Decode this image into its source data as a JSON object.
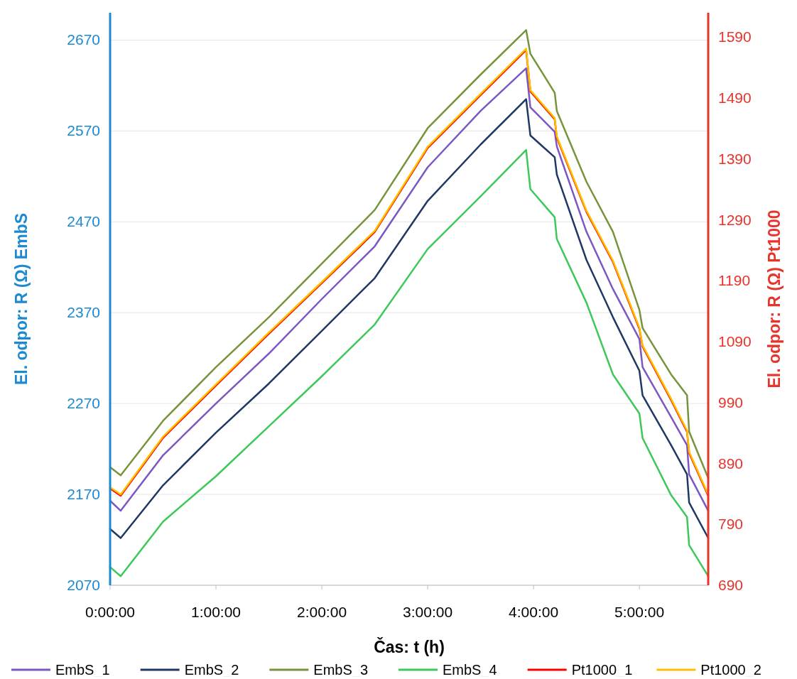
{
  "chart_data": {
    "type": "line",
    "xlabel": "Čas: t (h)",
    "ylabel": "El. odpor: R (Ω) EmbS",
    "y2label": "El. odpor: R (Ω) Pt1000",
    "x": [
      0,
      0.1,
      0.5,
      1,
      1.5,
      2,
      2.5,
      3,
      3.5,
      3.93,
      3.97,
      4.2,
      4.22,
      4.5,
      4.75,
      5.0,
      5.03,
      5.3,
      5.45,
      5.47,
      5.65
    ],
    "xlim": [
      0,
      5.65
    ],
    "xticks": [
      {
        "value": 0,
        "label": "0:00:00"
      },
      {
        "value": 1,
        "label": "1:00:00"
      },
      {
        "value": 2,
        "label": "2:00:00"
      },
      {
        "value": 3,
        "label": "3:00:00"
      },
      {
        "value": 4,
        "label": "4:00:00"
      },
      {
        "value": 5,
        "label": "5:00:00"
      }
    ],
    "ylim": [
      2070,
      2700
    ],
    "yticks": [
      2070,
      2170,
      2270,
      2370,
      2470,
      2570,
      2670
    ],
    "y2lim": [
      690,
      1630
    ],
    "y2ticks": [
      690,
      790,
      890,
      990,
      1090,
      1190,
      1290,
      1390,
      1490,
      1590
    ],
    "grid": "y",
    "legend": "bottom",
    "marker": "none",
    "line_style": "solid",
    "series": [
      {
        "name": "EmbS_1",
        "color": "#7b57c4",
        "values": [
          2163,
          2152,
          2213,
          2270,
          2325,
          2385,
          2443,
          2530,
          2592,
          2639,
          2596,
          2569,
          2553,
          2459,
          2396,
          2341,
          2310,
          2255,
          2224,
          2192,
          2152
        ]
      },
      {
        "name": "EmbS_2",
        "color": "#1f3864",
        "values": [
          2132,
          2122,
          2180,
          2238,
          2292,
          2350,
          2408,
          2493,
          2555,
          2605,
          2565,
          2541,
          2522,
          2428,
          2365,
          2306,
          2279,
          2224,
          2192,
          2161,
          2122
        ]
      },
      {
        "name": "EmbS_3",
        "color": "#77933c",
        "values": [
          2200,
          2191,
          2251,
          2310,
          2365,
          2424,
          2483,
          2573,
          2632,
          2681,
          2655,
          2612,
          2592,
          2514,
          2459,
          2373,
          2353,
          2302,
          2279,
          2239,
          2188
        ]
      },
      {
        "name": "EmbS_4",
        "color": "#3cc85a",
        "values": [
          2090,
          2080,
          2140,
          2190,
          2245,
          2300,
          2357,
          2440,
          2498,
          2549,
          2506,
          2475,
          2451,
          2381,
          2302,
          2259,
          2232,
          2169,
          2145,
          2114,
          2080
        ]
      },
      {
        "name": "Pt1000_1",
        "color": "#ff0000",
        "axis": "y2",
        "values": [
          849,
          837,
          932,
          1018,
          1103,
          1186,
          1270,
          1408,
          1495,
          1569,
          1501,
          1455,
          1425,
          1303,
          1221,
          1111,
          1082,
          994,
          942,
          907,
          837
        ]
      },
      {
        "name": "Pt1000_2",
        "color": "#ffc000",
        "axis": "y2",
        "values": [
          851,
          839,
          934,
          1020,
          1105,
          1188,
          1272,
          1410,
          1497,
          1571,
          1503,
          1457,
          1427,
          1305,
          1223,
          1113,
          1084,
          996,
          944,
          909,
          839
        ]
      }
    ]
  }
}
